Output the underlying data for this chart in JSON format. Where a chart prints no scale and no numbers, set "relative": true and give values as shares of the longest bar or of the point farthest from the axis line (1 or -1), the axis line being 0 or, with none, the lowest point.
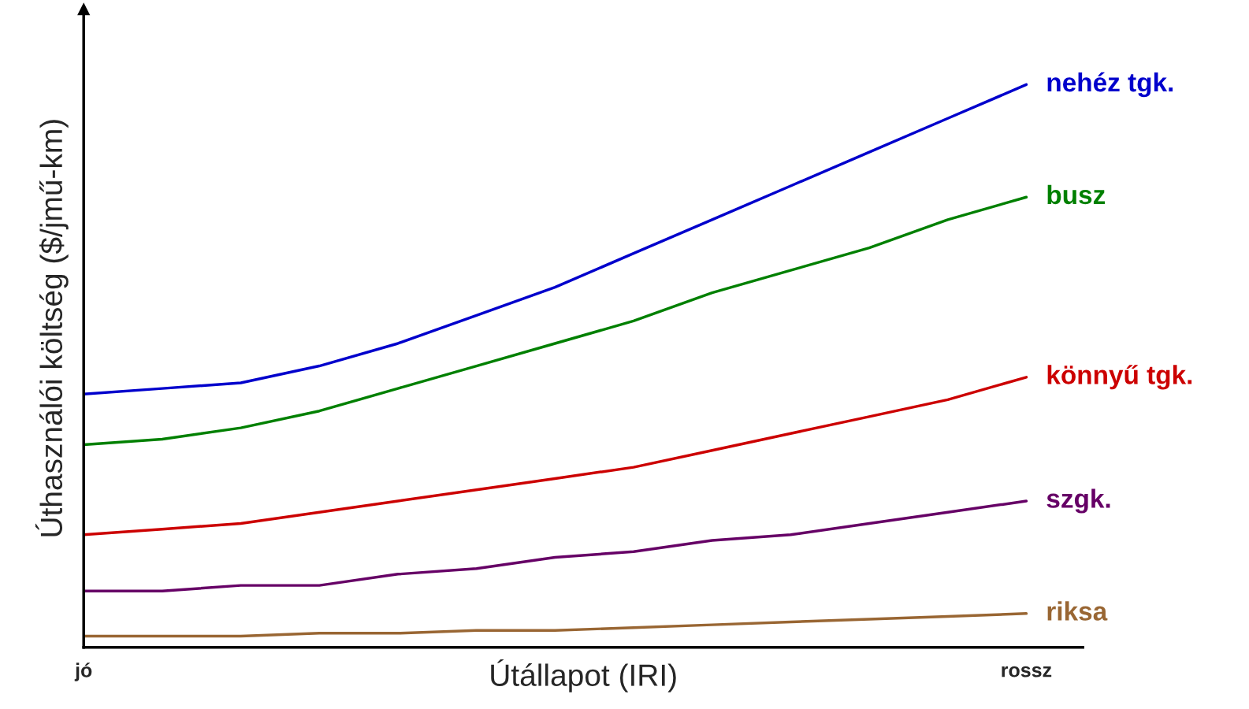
{
  "chart_data": {
    "type": "line",
    "relative": true,
    "xlabel": "Útállapot (IRI)",
    "ylabel": "Úthasználói költség ($/jmű-km)",
    "categories": [
      "jó",
      null,
      null,
      null,
      null,
      null,
      null,
      null,
      null,
      null,
      null,
      null,
      "rossz"
    ],
    "series": [
      {
        "name": "nehéz tgk.",
        "color": "#0000cc",
        "values": [
          0.45,
          0.46,
          0.47,
          0.5,
          0.54,
          0.59,
          0.64,
          0.7,
          0.76,
          0.82,
          0.88,
          0.94,
          1.0
        ]
      },
      {
        "name": "busz",
        "color": "#008000",
        "values": [
          0.36,
          0.37,
          0.39,
          0.42,
          0.46,
          0.5,
          0.54,
          0.58,
          0.63,
          0.67,
          0.71,
          0.76,
          0.8
        ]
      },
      {
        "name": "könnyű tgk.",
        "color": "#cc0000",
        "values": [
          0.2,
          0.21,
          0.22,
          0.24,
          0.26,
          0.28,
          0.3,
          0.32,
          0.35,
          0.38,
          0.41,
          0.44,
          0.48
        ]
      },
      {
        "name": "szgk.",
        "color": "#660066",
        "values": [
          0.1,
          0.1,
          0.11,
          0.11,
          0.13,
          0.14,
          0.16,
          0.17,
          0.19,
          0.2,
          0.22,
          0.24,
          0.26
        ]
      },
      {
        "name": "riksa",
        "color": "#996633",
        "values": [
          0.02,
          0.02,
          0.02,
          0.025,
          0.025,
          0.03,
          0.03,
          0.035,
          0.04,
          0.045,
          0.05,
          0.055,
          0.06
        ]
      }
    ],
    "grid": false,
    "legend": false,
    "marker": "none",
    "line_style": "solid"
  }
}
